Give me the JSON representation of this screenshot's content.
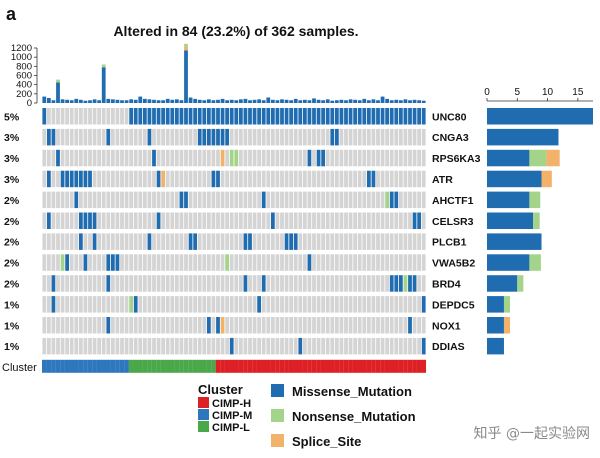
{
  "panel_label": "a",
  "chart_data": {
    "type": "heatmap",
    "title": "Altered in 84 (23.2%) of 362 samples.",
    "genes": [
      "UNC80",
      "CNGA3",
      "RPS6KA3",
      "ATR",
      "AHCTF1",
      "CELSR3",
      "PLCB1",
      "VWA5B2",
      "BRD4",
      "DEPDC5",
      "NOX1",
      "DDIAS"
    ],
    "percent_labels": [
      "5%",
      "3%",
      "3%",
      "3%",
      "2%",
      "2%",
      "2%",
      "2%",
      "2%",
      "1%",
      "1%",
      "1%"
    ],
    "n_columns": 84,
    "top_bar": {
      "ylim": [
        0,
        1200
      ],
      "ticks": [
        "0",
        "200",
        "400",
        "600",
        "800",
        "1000",
        "1200"
      ],
      "values": [
        140,
        110,
        60,
        450,
        80,
        70,
        60,
        90,
        70,
        50,
        60,
        80,
        60,
        780,
        90,
        80,
        70,
        60,
        60,
        80,
        70,
        140,
        90,
        80,
        70,
        60,
        60,
        90,
        70,
        80,
        60,
        1150,
        120,
        90,
        70,
        60,
        80,
        60,
        70,
        90,
        60,
        70,
        60,
        80,
        90,
        60,
        70,
        80,
        60,
        120,
        70,
        60,
        80,
        70,
        60,
        90,
        60,
        70,
        60,
        100,
        70,
        60,
        80,
        50,
        60,
        70,
        60,
        80,
        70,
        60,
        90,
        60,
        80,
        60,
        140,
        90,
        60,
        70,
        60,
        80,
        60,
        70,
        60,
        50
      ],
      "extras": [
        {
          "col": 3,
          "type": "Nonsense_Mutation",
          "value": 60
        },
        {
          "col": 13,
          "type": "Nonsense_Mutation",
          "value": 60
        },
        {
          "col": 31,
          "type": "Splice_Site",
          "value": 80
        },
        {
          "col": 31,
          "type": "Nonsense_Mutation",
          "value": 60
        }
      ]
    },
    "right_bar": {
      "xlim": [
        0,
        17.5
      ],
      "ticks": [
        "0",
        "5",
        "10",
        "15"
      ],
      "values": [
        {
          "missense": 17.5,
          "nonsense": 0,
          "splice": 0
        },
        {
          "missense": 11.8,
          "nonsense": 0,
          "splice": 0
        },
        {
          "missense": 7,
          "nonsense": 2.8,
          "splice": 2.2
        },
        {
          "missense": 9,
          "nonsense": 0,
          "splice": 1.7
        },
        {
          "missense": 7,
          "nonsense": 1.8,
          "splice": 0
        },
        {
          "missense": 7.6,
          "nonsense": 1.1,
          "splice": 0
        },
        {
          "missense": 9,
          "nonsense": 0,
          "splice": 0
        },
        {
          "missense": 7,
          "nonsense": 1.9,
          "splice": 0
        },
        {
          "missense": 5,
          "nonsense": 1,
          "splice": 0
        },
        {
          "missense": 2.8,
          "nonsense": 1,
          "splice": 0
        },
        {
          "missense": 2.8,
          "nonsense": 0,
          "splice": 1
        },
        {
          "missense": 2.8,
          "nonsense": 0,
          "splice": 0
        }
      ]
    },
    "cells": {
      "UNC80": {
        "missense": [
          0,
          19,
          20,
          21,
          22,
          23,
          24,
          25,
          26,
          27,
          28,
          29,
          30,
          31,
          32,
          33,
          34,
          35,
          36,
          37,
          38,
          39,
          40,
          41,
          42,
          43,
          44,
          45,
          46,
          47,
          48,
          49,
          50,
          51,
          52,
          53,
          54,
          55,
          56,
          57,
          58,
          59,
          60,
          61,
          62,
          63,
          64,
          65,
          66,
          67,
          68,
          69,
          70,
          71,
          72,
          73,
          74,
          75,
          76,
          77,
          78,
          79,
          80,
          81,
          82,
          83
        ],
        "nonsense": [],
        "splice": []
      },
      "CNGA3": {
        "missense": [
          1,
          2,
          14,
          23,
          34,
          35,
          36,
          37,
          38,
          39,
          40,
          63,
          64
        ],
        "nonsense": [],
        "splice": []
      },
      "RPS6KA3": {
        "missense": [
          3,
          24,
          58,
          60,
          61
        ],
        "nonsense": [
          41,
          42
        ],
        "splice": [
          39
        ]
      },
      "ATR": {
        "missense": [
          1,
          4,
          5,
          6,
          7,
          8,
          9,
          10,
          25,
          37,
          38,
          71,
          72
        ],
        "nonsense": [],
        "splice": [
          26
        ]
      },
      "AHCTF1": {
        "missense": [
          7,
          30,
          31,
          48,
          76,
          77
        ],
        "nonsense": [
          75
        ],
        "splice": []
      },
      "CELSR3": {
        "missense": [
          1,
          8,
          9,
          10,
          11,
          25,
          50,
          81,
          82
        ],
        "nonsense": [],
        "splice": []
      },
      "PLCB1": {
        "missense": [
          8,
          11,
          23,
          32,
          33,
          44,
          45,
          53,
          54,
          55
        ],
        "nonsense": [],
        "splice": []
      },
      "VWA5B2": {
        "missense": [
          5,
          9,
          14,
          15,
          16,
          58
        ],
        "nonsense": [
          4,
          40
        ],
        "splice": []
      },
      "BRD4": {
        "missense": [
          2,
          14,
          44,
          48,
          76,
          77,
          78,
          80,
          81
        ],
        "nonsense": [
          79
        ],
        "splice": []
      },
      "DEPDC5": {
        "missense": [
          2,
          20,
          47,
          83
        ],
        "nonsense": [
          19
        ],
        "splice": []
      },
      "NOX1": {
        "missense": [
          14,
          36,
          38,
          80
        ],
        "nonsense": [],
        "splice": [
          39
        ]
      },
      "DDIAS": {
        "missense": [
          41,
          56,
          83
        ],
        "nonsense": [],
        "splice": []
      }
    },
    "cluster_bar": {
      "label": "Cluster",
      "segments": [
        {
          "name": "CIMP-M",
          "count": 19
        },
        {
          "name": "CIMP-L",
          "count": 19
        },
        {
          "name": "CIMP-H",
          "count": 46
        }
      ]
    },
    "cluster_legend": {
      "title": "Cluster",
      "items": [
        {
          "name": "CIMP-H",
          "color": "#dd1f26"
        },
        {
          "name": "CIMP-M",
          "color": "#2e77bc"
        },
        {
          "name": "CIMP-L",
          "color": "#4aa84a"
        }
      ]
    },
    "mutation_legend": [
      {
        "name": "Missense_Mutation",
        "color": "#1f6cb0"
      },
      {
        "name": "Nonsense_Mutation",
        "color": "#a4d48a"
      },
      {
        "name": "Splice_Site",
        "color": "#f2b26a"
      }
    ],
    "colors": {
      "missense": "#1f6cb0",
      "nonsense": "#a4d48a",
      "splice": "#f2b26a",
      "empty": "#d4d4d4",
      "cimp_h": "#dd1f26",
      "cimp_m": "#2e77bc",
      "cimp_l": "#4aa84a"
    }
  },
  "watermark": "知乎 @一起实验网"
}
